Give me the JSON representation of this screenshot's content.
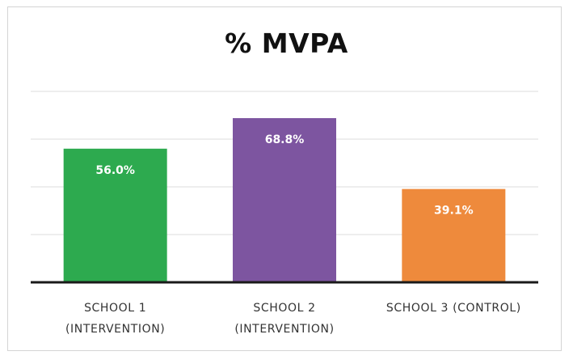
{
  "chart_data": {
    "type": "bar",
    "title": "% MVPA",
    "xlabel": "",
    "ylabel": "",
    "categories": [
      [
        "SCHOOL 1",
        "(INTERVENTION)"
      ],
      [
        "SCHOOL 2",
        "(INTERVENTION)"
      ],
      [
        "SCHOOL 3 (CONTROL)"
      ]
    ],
    "values": [
      56.0,
      68.8,
      39.1
    ],
    "data_labels": [
      "56.0%",
      "68.8%",
      "39.1%"
    ],
    "colors": [
      "#2daa4f",
      "#7d55a0",
      "#ee8a3c"
    ],
    "ylim": [
      0,
      80
    ],
    "gridlines": [
      0,
      20,
      40,
      60,
      80
    ],
    "y_axis_labels_shown": false,
    "grid": true,
    "legend": "none"
  }
}
